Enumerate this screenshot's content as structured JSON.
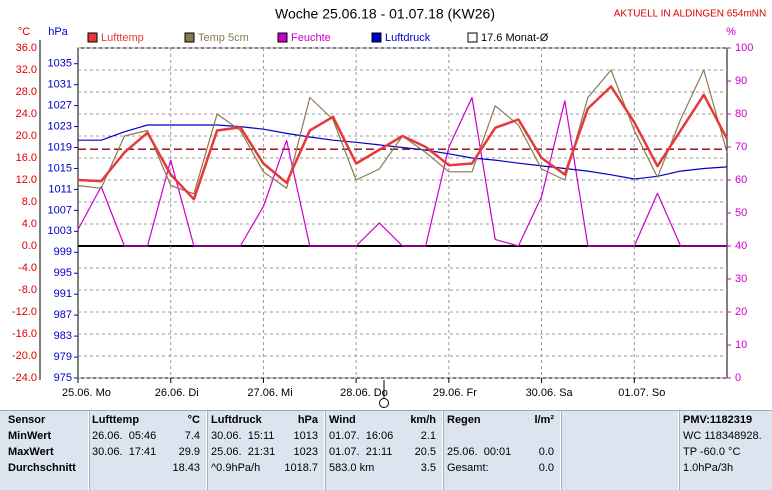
{
  "chart_data": {
    "type": "line",
    "title": "Woche 25.06.18 - 01.07.18 (KW26)",
    "subtitle": "AKTUELL IN ALDINGEN 654mNN",
    "y_label": "°C",
    "y2_label": "hPa",
    "y3_label": "%",
    "x": [
      0,
      6,
      12,
      18,
      24,
      30,
      36,
      42,
      48,
      54,
      60,
      66,
      72,
      78,
      84,
      90,
      96,
      102,
      108,
      114,
      120,
      126,
      132,
      138,
      144,
      150,
      156,
      162,
      168
    ],
    "xlim": [
      0,
      168
    ],
    "xticks": [
      {
        "value": 0,
        "label": "25.06. Mo"
      },
      {
        "value": 24,
        "label": "26.06. Di"
      },
      {
        "value": 48,
        "label": "27.06. Mi"
      },
      {
        "value": 72,
        "label": "28.06. Do"
      },
      {
        "value": 96,
        "label": "29.06. Fr"
      },
      {
        "value": 120,
        "label": "30.06. Sa"
      },
      {
        "value": 144,
        "label": "01.07. So"
      }
    ],
    "ylim": [
      -24,
      36
    ],
    "yticks": [
      {
        "value": 36,
        "label": "36.0"
      },
      {
        "value": 32,
        "label": "32.0"
      },
      {
        "value": 28,
        "label": "28.0"
      },
      {
        "value": 24,
        "label": "24.0"
      },
      {
        "value": 20,
        "label": "20.0"
      },
      {
        "value": 16,
        "label": "16.0"
      },
      {
        "value": 12,
        "label": "12.0"
      },
      {
        "value": 8,
        "label": "8.0"
      },
      {
        "value": 4,
        "label": "4.0"
      },
      {
        "value": 0,
        "label": "0.0"
      },
      {
        "value": -4,
        "label": "-4.0"
      },
      {
        "value": -8,
        "label": "-8.0"
      },
      {
        "value": -12,
        "label": "-12.0"
      },
      {
        "value": -16,
        "label": "-16.0"
      },
      {
        "value": -20,
        "label": "-20.0"
      },
      {
        "value": -24,
        "label": "-24.0"
      }
    ],
    "y2lim": [
      975,
      1038
    ],
    "y2ticks": [
      1035,
      1031,
      1027,
      1023,
      1019,
      1015,
      1011,
      1007,
      1003,
      999,
      995,
      991,
      987,
      983,
      979,
      975
    ],
    "y3lim": [
      0,
      100
    ],
    "y3ticks": [
      100,
      90,
      80,
      70,
      60,
      50,
      40,
      30,
      20,
      10,
      0
    ],
    "grid": true,
    "series": [
      {
        "name": "Lufttemp",
        "color": "#e8383a",
        "axis": "y",
        "values": [
          12.0,
          11.8,
          17.0,
          20.6,
          13.0,
          8.5,
          21.0,
          21.6,
          15.0,
          11.5,
          21.0,
          23.5,
          15.0,
          17.5,
          20.0,
          18.0,
          14.7,
          15.0,
          21.5,
          23.0,
          16.0,
          13.0,
          25.0,
          29.0,
          22.5,
          14.5,
          21.0,
          27.5,
          19.5
        ]
      },
      {
        "name": "Temp 5cm",
        "color": "#8a7a50",
        "axis": "y",
        "values": [
          11.0,
          10.5,
          20.0,
          21.0,
          11.0,
          9.5,
          24.0,
          21.0,
          13.5,
          10.5,
          27.0,
          23.0,
          12.0,
          14.0,
          20.0,
          17.0,
          13.5,
          13.5,
          25.5,
          22.0,
          14.0,
          12.0,
          27.0,
          32.0,
          21.0,
          12.5,
          23.0,
          32.0,
          17.0
        ]
      },
      {
        "name": "Feuchte",
        "color": "#cc00cc",
        "axis": "y3",
        "values": [
          45,
          58,
          40,
          40,
          66,
          40,
          40,
          40,
          52,
          72,
          40,
          40,
          40,
          47,
          40,
          40,
          70,
          85,
          42,
          40,
          55,
          84,
          40,
          40,
          40,
          56,
          40,
          40,
          40
        ]
      },
      {
        "name": "Luftdruck",
        "color": "#0000cc",
        "axis": "y2",
        "values": [
          1020.4,
          1020.4,
          1022.0,
          1023.3,
          1023.3,
          1023.3,
          1023.3,
          1023.0,
          1022.5,
          1021.7,
          1021.0,
          1020.4,
          1020.0,
          1019.5,
          1019.0,
          1018.5,
          1017.8,
          1017.0,
          1016.6,
          1016.0,
          1015.5,
          1015.0,
          1014.5,
          1013.8,
          1013.0,
          1013.5,
          1014.5,
          1015.0,
          1015.3
        ]
      }
    ],
    "reference_line": {
      "name": "17.6 Monat-Ø",
      "value": 17.6,
      "color": "#8b0000"
    }
  },
  "table": {
    "columns": [
      {
        "title": "Sensor"
      },
      {
        "title": "Lufttemp",
        "unit": "°C"
      },
      {
        "title": "Luftdruck",
        "unit": "hPa"
      },
      {
        "title": "Wind",
        "unit": "km/h"
      },
      {
        "title": "Regen",
        "unit": "l/m²"
      },
      {
        "title": "PMV:1182319"
      }
    ],
    "rows": [
      {
        "label": "MinWert",
        "cells": [
          [
            "26.06.  05:46",
            "7.4"
          ],
          [
            "30.06.  15:11",
            "1013"
          ],
          [
            "01.07.  16:06",
            "2.1"
          ],
          [
            null,
            null
          ]
        ],
        "extra": "WC 118348928."
      },
      {
        "label": "MaxWert",
        "cells": [
          [
            "30.06.  17:41",
            "29.9"
          ],
          [
            "25.06.  21:31",
            "1023"
          ],
          [
            "01.07.  21:11",
            "20.5"
          ],
          [
            "25.06.  00:01",
            "0.0"
          ]
        ],
        "extra": "TP -60.0 °C"
      },
      {
        "label": "Durchschnitt",
        "cells": [
          [
            null,
            "18.43"
          ],
          [
            "^0.9hPa/h",
            "1018.7"
          ],
          [
            "583.0 km",
            "3.5"
          ],
          [
            "Gesamt:",
            "0.0"
          ]
        ],
        "extra": "1.0hPa/3h"
      }
    ]
  }
}
